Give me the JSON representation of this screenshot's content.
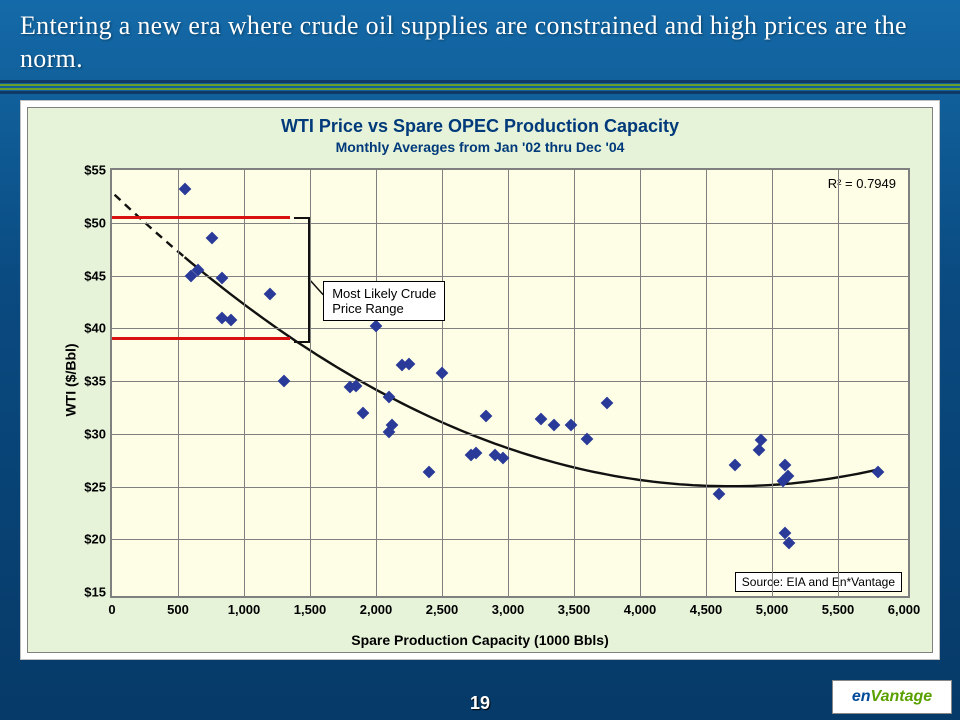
{
  "slide": {
    "title": "Entering a new era where crude oil supplies are constrained and high prices are the norm.",
    "page_number": "19",
    "background_gradient": [
      "#146aa8",
      "#063a68"
    ],
    "divider_colors": {
      "outer": "#0f3a66",
      "inner": "#6aa028"
    }
  },
  "logo": {
    "text_1": "en",
    "text_2": "Vantage",
    "color_1": "#004a99",
    "color_2": "#5aa000"
  },
  "chart": {
    "type": "scatter",
    "title": "WTI Price vs Spare OPEC Production Capacity",
    "subtitle": "Monthly Averages from Jan '02 thru Dec '04",
    "title_color": "#003a7a",
    "title_fontsize": 18,
    "subtitle_fontsize": 14,
    "background_color": "#e6f3d9",
    "plot_background_color": "#fefee6",
    "grid_color": "#808080",
    "marker_color": "#2a3a99",
    "marker_style": "diamond",
    "marker_size": 9,
    "xlabel": "Spare Production Capacity (1000 Bbls)",
    "ylabel": "WTI ($/Bbl)",
    "label_fontsize": 14,
    "xlim": [
      0,
      6000
    ],
    "ylim": [
      15,
      55
    ],
    "xtick_step": 500,
    "ytick_step": 5,
    "y_prefix": "$",
    "r2_label": "R² = 0.7949",
    "points": [
      [
        550,
        53.2
      ],
      [
        600,
        45.0
      ],
      [
        650,
        45.5
      ],
      [
        760,
        48.6
      ],
      [
        830,
        44.8
      ],
      [
        830,
        41.0
      ],
      [
        900,
        40.8
      ],
      [
        1200,
        43.2
      ],
      [
        1300,
        35.0
      ],
      [
        1800,
        34.4
      ],
      [
        1850,
        34.5
      ],
      [
        1900,
        32.0
      ],
      [
        2000,
        40.2
      ],
      [
        2100,
        33.5
      ],
      [
        2100,
        30.2
      ],
      [
        2120,
        30.8
      ],
      [
        2200,
        36.5
      ],
      [
        2250,
        36.6
      ],
      [
        2500,
        35.8
      ],
      [
        2400,
        26.4
      ],
      [
        2720,
        28.0
      ],
      [
        2760,
        28.2
      ],
      [
        2830,
        31.7
      ],
      [
        2900,
        28.0
      ],
      [
        2960,
        27.7
      ],
      [
        3250,
        31.4
      ],
      [
        3350,
        30.8
      ],
      [
        3480,
        30.8
      ],
      [
        3600,
        29.5
      ],
      [
        3750,
        32.9
      ],
      [
        4600,
        24.3
      ],
      [
        4720,
        27.0
      ],
      [
        4900,
        28.5
      ],
      [
        4920,
        29.4
      ],
      [
        5080,
        25.5
      ],
      [
        5100,
        27.0
      ],
      [
        5100,
        20.6
      ],
      [
        5120,
        26.0
      ],
      [
        5130,
        19.6
      ],
      [
        5800,
        26.4
      ]
    ],
    "trend": {
      "color": "#111111",
      "width": 2.4,
      "cap_extrapolate": 250,
      "coeffs_quadratic": [
        1.27e-06,
        -0.0119,
        52.9
      ]
    },
    "price_range": {
      "y_low": 39,
      "y_high": 50.5,
      "x_end": 1350,
      "line_color": "#d91010",
      "line_width": 3,
      "label": "Most Likely Crude\nPrice Range",
      "label_box_x": 1600,
      "label_box_y": 44.5
    },
    "source": "Source: EIA and En*Vantage"
  }
}
